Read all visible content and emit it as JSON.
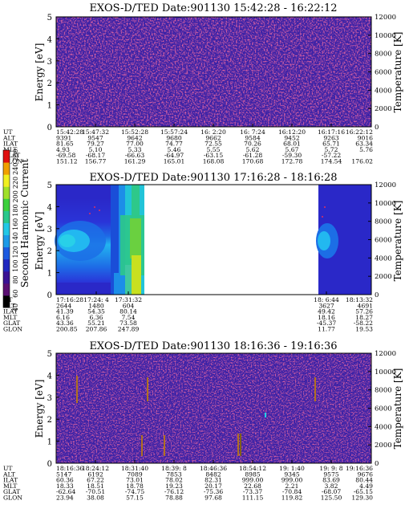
{
  "colorbar": {
    "label": "Second Harmonic Current",
    "ticks": [
      "40",
      "60",
      "80",
      "100",
      "120",
      "140",
      "160",
      "180",
      "200",
      "220",
      "240",
      "250"
    ],
    "colors": [
      "#000000",
      "#5a0f72",
      "#3a1294",
      "#2028c0",
      "#1c5ae0",
      "#1c9ae8",
      "#22c8e6",
      "#28c88c",
      "#3cd03c",
      "#a0e028",
      "#f0f020",
      "#f0a000",
      "#e01010"
    ]
  },
  "chart_data": [
    {
      "type": "heatmap",
      "title": "EXOS-D/TED   Date:901130   15:42:28 - 16:22:12",
      "ylabel": "Energy [eV]",
      "ylabel_right": "Temperature [K]",
      "ylim": [
        0,
        5
      ],
      "ylim_right": [
        0,
        12000
      ],
      "yticks": [
        "0",
        "1",
        "2",
        "3",
        "4",
        "5"
      ],
      "yticks_right": [
        "0",
        "2000",
        "4000",
        "6000",
        "8000",
        "10000",
        "12000"
      ],
      "background": "noise",
      "data_coverage": [
        [
          0,
          1
        ]
      ],
      "row_labels": [
        "UT",
        "ALT",
        "ILAT",
        "MLT",
        "GLAT",
        "GLON"
      ],
      "columns": [
        [
          "15:42:28",
          "9391",
          "81.65",
          "4.93",
          "-69.58",
          "151.12"
        ],
        [
          "15:47:32",
          "9547",
          "79.27",
          "5.10",
          "-68.17",
          "156.77"
        ],
        [
          "15:52:28",
          "9642",
          "77.00",
          "5.33",
          "-66.63",
          "161.29"
        ],
        [
          "15:57:24",
          "9680",
          "74.77",
          "5.46",
          "-64.97",
          "165.01"
        ],
        [
          "16: 2:20",
          "9662",
          "72.55",
          "5.55",
          "-63.15",
          "168.08"
        ],
        [
          "16: 7:24",
          "9584",
          "70.26",
          "5.62",
          "-61.28",
          "170.68"
        ],
        [
          "16:12:20",
          "9452",
          "68.01",
          "5.67",
          "-59.30",
          "172.78"
        ],
        [
          "16:17:16",
          "9263",
          "65.71",
          "5.72",
          "-57.22",
          "174.54"
        ],
        [
          "16:22:12",
          "9016",
          "63.34",
          "5.76",
          "",
          "176.02"
        ]
      ]
    },
    {
      "type": "heatmap",
      "title": "EXOS-D/TED   Date:901130   17:16:28 - 18:16:28",
      "ylabel": "Energy [eV]",
      "ylabel_right": "Temperature [K]",
      "ylim": [
        0,
        5
      ],
      "ylim_right": [
        0,
        12000
      ],
      "yticks": [
        "0",
        "1",
        "2",
        "3",
        "4",
        "5"
      ],
      "yticks_right": [
        "0",
        "2000",
        "4000",
        "6000",
        "8000",
        "10000",
        "12000"
      ],
      "background": "plasma",
      "data_coverage": [
        [
          0,
          0.28
        ],
        [
          0.87,
          1
        ]
      ],
      "row_labels": [
        "UT",
        "ALT",
        "ILAT",
        "MLT",
        "GLAT",
        "GLON"
      ],
      "columns": [
        [
          "17:16:28",
          "2644",
          "41.39",
          "6.16",
          "43.36",
          "200.85"
        ],
        [
          "17:24: 4",
          "1480",
          "54.35",
          "6.36",
          "55.21",
          "207.86"
        ],
        [
          "17:31:32",
          "604",
          "80.14",
          "7.54",
          "73.58",
          "247.89"
        ],
        [
          "18: 6:44",
          "3627",
          "49.42",
          "18.16",
          "-45.37",
          "11.77"
        ],
        [
          "18:13:32",
          "4691",
          "57.26",
          "18.27",
          "-58.22",
          "19.53"
        ]
      ]
    },
    {
      "type": "heatmap",
      "title": "EXOS-D/TED   Date:901130   18:16:36 - 19:16:36",
      "ylabel": "Energy [eV]",
      "ylabel_right": "Temperature [K]",
      "ylim": [
        0,
        5
      ],
      "ylim_right": [
        0,
        12000
      ],
      "yticks": [
        "0",
        "1",
        "2",
        "3",
        "4",
        "5"
      ],
      "yticks_right": [
        "0",
        "2000",
        "4000",
        "6000",
        "8000",
        "10000",
        "12000"
      ],
      "background": "noise",
      "data_coverage": [
        [
          0,
          1
        ]
      ],
      "row_labels": [
        "UT",
        "ALT",
        "ILAT",
        "MLT",
        "GLAT",
        "GLON"
      ],
      "columns": [
        [
          "18:16:36",
          "5147",
          "60.36",
          "18.33",
          "-62.64",
          "23.94"
        ],
        [
          "18:24:12",
          "6192",
          "67.22",
          "18.51",
          "-70.51",
          "38.08"
        ],
        [
          "18:31:40",
          "7089",
          "73.01",
          "18.78",
          "-74.75",
          "57.15"
        ],
        [
          "18:39: 8",
          "7853",
          "78.02",
          "19.23",
          "-76.12",
          "78.88"
        ],
        [
          "18:46:36",
          "8482",
          "82.31",
          "20.17",
          "-75.36",
          "97.68"
        ],
        [
          "18:54:12",
          "8985",
          "999.00",
          "22.68",
          "-73.37",
          "111.15"
        ],
        [
          "19: 1:40",
          "9345",
          "999.00",
          "2.21",
          "-70.84",
          "119.82"
        ],
        [
          "19: 9: 8",
          "9575",
          "83.69",
          "3.82",
          "-68.07",
          "125.50"
        ],
        [
          "19:16:36",
          "9676",
          "80.44",
          "4.49",
          "-65.15",
          "129.30"
        ]
      ]
    }
  ]
}
